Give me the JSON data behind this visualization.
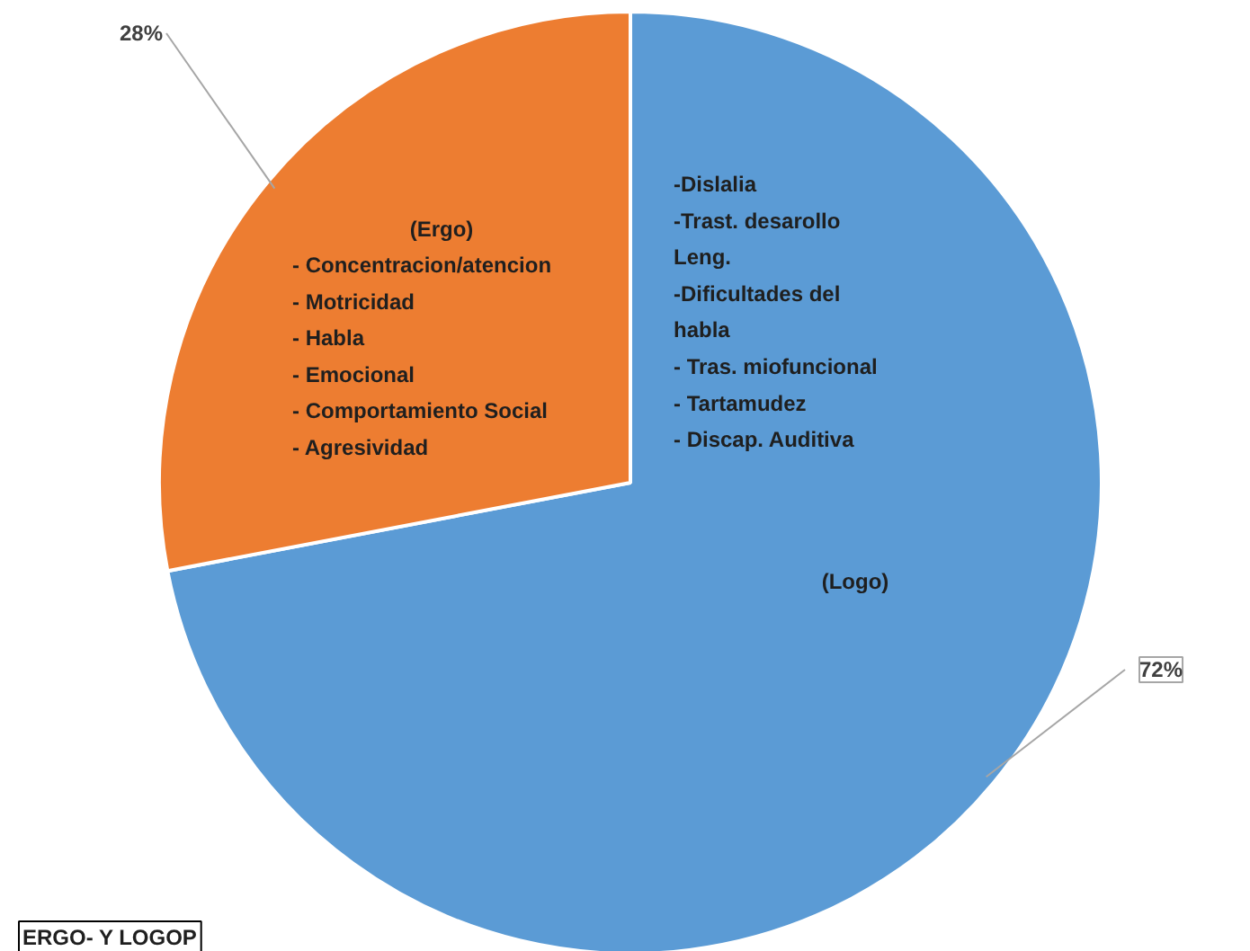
{
  "chart_data": {
    "type": "pie",
    "categories": [
      "(Logo)",
      "(Ergo)"
    ],
    "values": [
      72,
      28
    ],
    "colors": [
      "#5b9bd5",
      "#ed7d31"
    ],
    "value_labels": [
      "72%",
      "28%"
    ],
    "annotations": [
      "- Concentracion/atencion\n- Motricidad\n- Habla\n- Emocional\n- Comportamiento Social\n- Agresividad",
      "-Dislalia\n -Trast. desarollo\nLeng.\n-Dificultades del\nhabla\n- Tras. miofuncional\n- Tartamudez\n- Discap. Auditiva",
      "ERGO- Y LOGOP"
    ]
  }
}
